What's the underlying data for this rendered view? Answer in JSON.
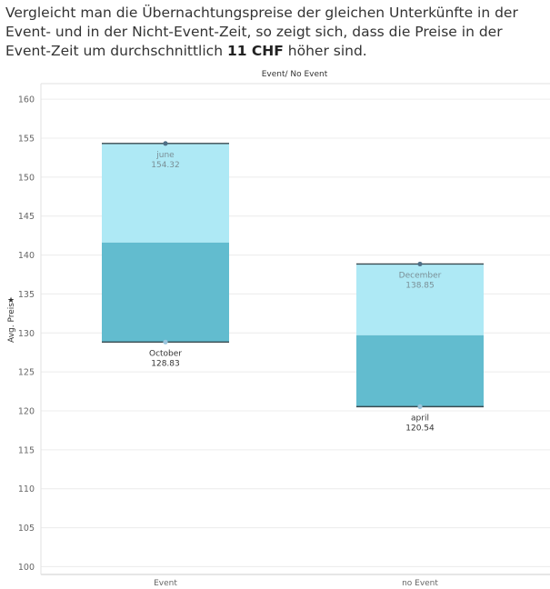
{
  "headline": {
    "part1": "Vergleicht man die Übernachtungspreise der gleichen Unterkünfte in der Event- und in der Nicht-Event-Zeit, so zeigt sich, dass die Preise in der Event-Zeit um durchschnittlich ",
    "highlight": "11 CHF",
    "part2": " höher sind."
  },
  "chart_data": {
    "type": "box",
    "column_header": "Event/ No Event",
    "ylabel": "Avg. Preis",
    "ylabel_icon": "pin-icon",
    "ylim": [
      99,
      162
    ],
    "yticks": [
      100,
      105,
      110,
      115,
      120,
      125,
      130,
      135,
      140,
      145,
      150,
      155,
      160
    ],
    "categories": [
      "Event",
      "no Event"
    ],
    "series": [
      {
        "category": "Event",
        "min": 128.83,
        "q1": 128.83,
        "median": 141.6,
        "q3": 154.32,
        "max": 154.32,
        "max_label": {
          "month": "june",
          "value": "154.32"
        },
        "min_label": {
          "month": "October",
          "value": "128.83"
        }
      },
      {
        "category": "no Event",
        "min": 120.54,
        "q1": 120.54,
        "median": 129.7,
        "q3": 138.85,
        "max": 138.85,
        "max_label": {
          "month": "December",
          "value": "138.85"
        },
        "min_label": {
          "month": "april",
          "value": "120.54"
        }
      }
    ],
    "colors": {
      "upper_box": "#aee9f5",
      "lower_box": "#62bccf",
      "whisker": "#3a4a50",
      "grid": "#ececec",
      "axis_text": "#666666",
      "label_upper": "#7a8f96",
      "label_lower": "#333333"
    },
    "grid": true
  }
}
